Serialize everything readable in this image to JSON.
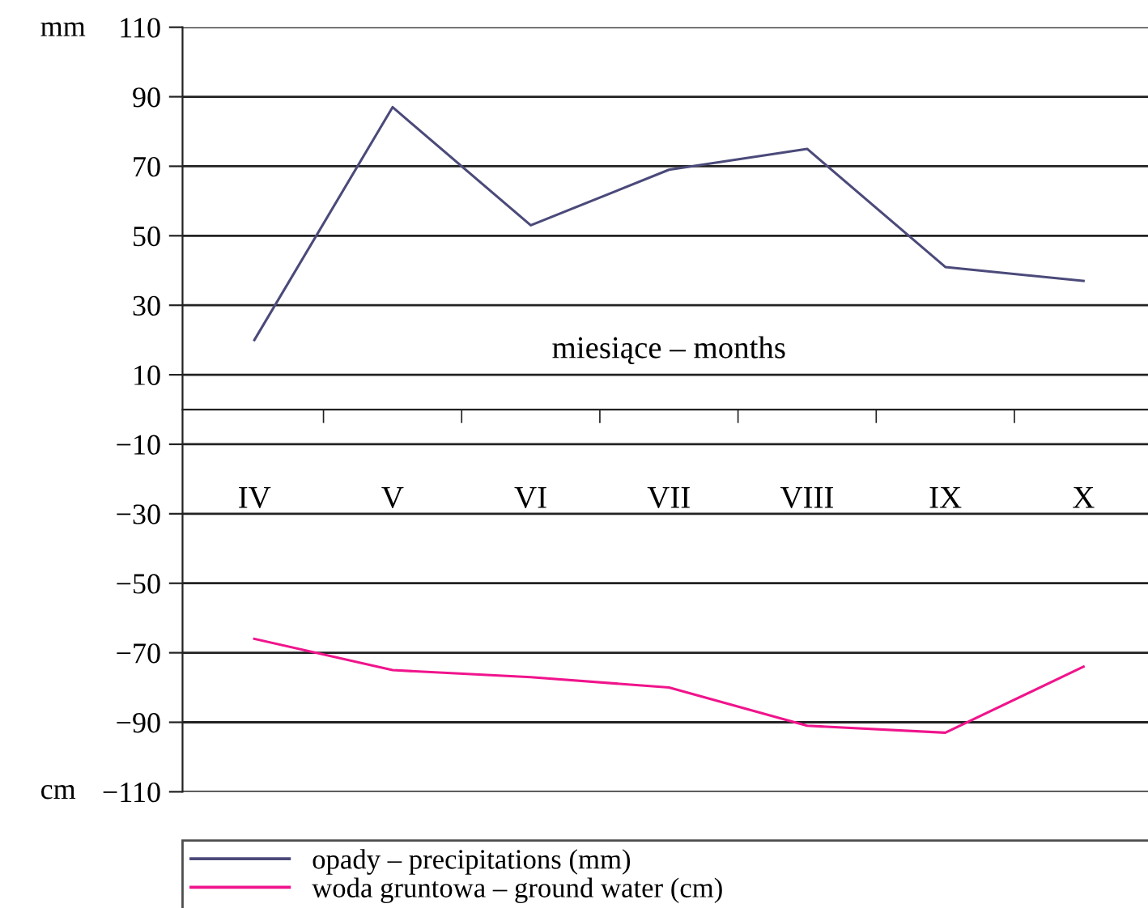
{
  "chart_data": {
    "type": "line",
    "xlabel": "miesiące – months",
    "categories": [
      "IV",
      "V",
      "VI",
      "VII",
      "VIII",
      "IX",
      "X"
    ],
    "series": [
      {
        "name": "opady – precipitations (mm)",
        "color": "#4b4a7a",
        "values": [
          20,
          87,
          53,
          69,
          75,
          41,
          37
        ]
      },
      {
        "name": "woda gruntowa – ground water (cm)",
        "color": "#f0148c",
        "values": [
          -66,
          -75,
          -77,
          -80,
          -91,
          -93,
          -74
        ]
      }
    ],
    "ylim": [
      -110,
      110
    ],
    "yticks": [
      -110,
      -90,
      -70,
      -50,
      -30,
      -10,
      10,
      30,
      50,
      70,
      90,
      110
    ],
    "grid": "y",
    "legend": "bottom",
    "marker": "none",
    "line_style": "solid",
    "annotations": [
      "mm",
      "cm"
    ]
  }
}
